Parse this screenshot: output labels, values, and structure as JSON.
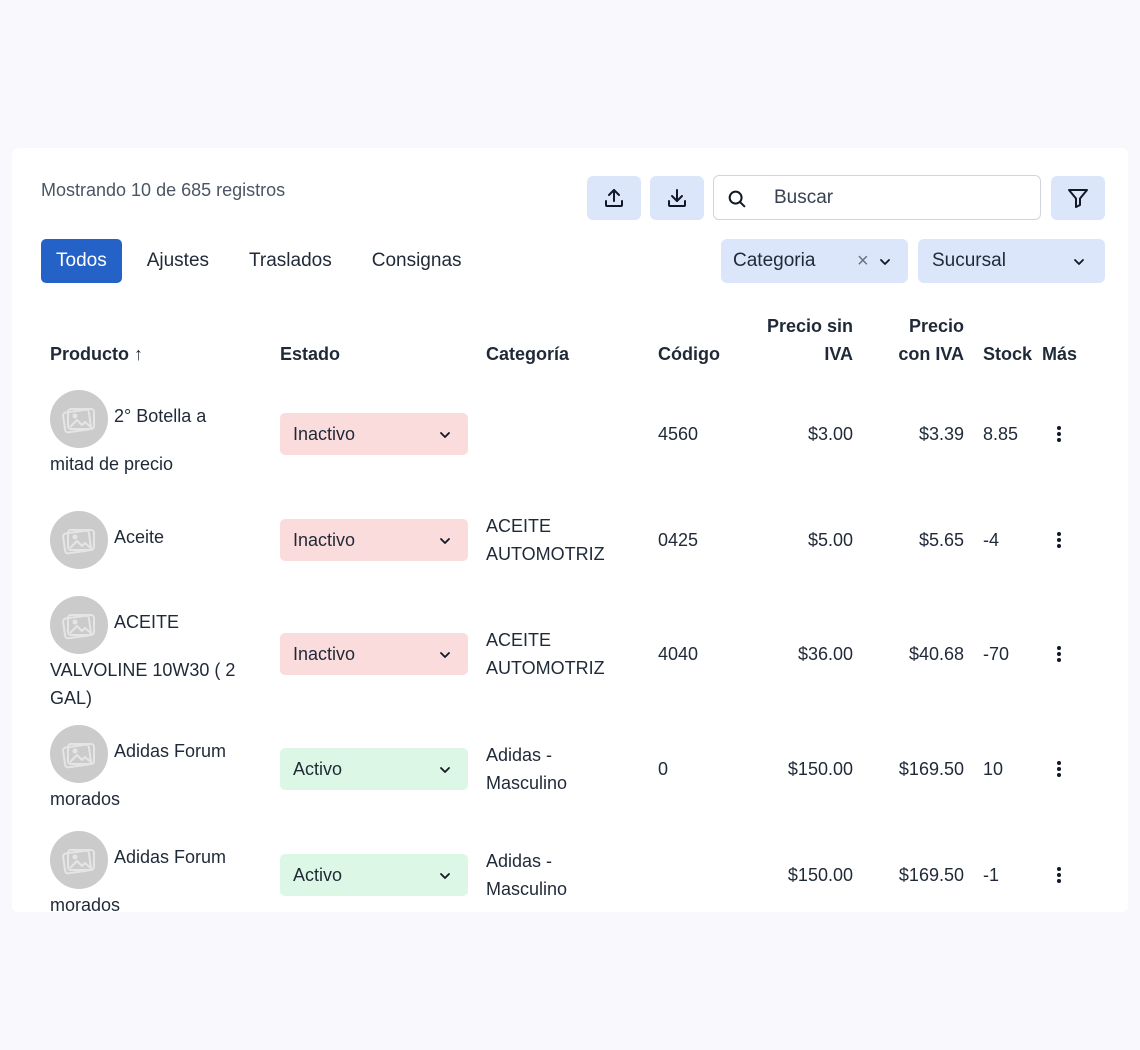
{
  "summary": "Mostrando 10 de 685 registros",
  "search": {
    "placeholder": "Buscar"
  },
  "tabs": [
    {
      "label": "Todos",
      "active": true
    },
    {
      "label": "Ajustes"
    },
    {
      "label": "Traslados"
    },
    {
      "label": "Consignas"
    }
  ],
  "filters": {
    "category": {
      "label": "Categoria"
    },
    "branch": {
      "label": "Sucursal"
    }
  },
  "icons": {
    "upload": "upload-icon",
    "download": "download-icon",
    "search": "search-icon",
    "filter": "filter-icon",
    "more": "more-vertical-icon"
  },
  "colors": {
    "accent": "#2462c7",
    "button_bg": "#dbe6fb",
    "inactive_bg": "#fbdcdc",
    "active_bg": "#dcf7e5"
  },
  "table": {
    "headers": {
      "product": "Producto ↑",
      "status": "Estado",
      "category": "Categoría",
      "code": "Código",
      "price_no_tax_1": "Precio sin",
      "price_no_tax_2": "IVA",
      "price_tax_1": "Precio",
      "price_tax_2": "con IVA",
      "stock": "Stock",
      "more": "Más"
    },
    "rows": [
      {
        "name_a": "2° Botella a",
        "name_b": "mitad de precio",
        "status": "Inactivo",
        "category": "",
        "code": "4560",
        "price": "$3.00",
        "price_tax": "$3.39",
        "stock": "8.85"
      },
      {
        "name_a": "Aceite",
        "name_b": "",
        "status": "Inactivo",
        "category": "ACEITE AUTOMOTRIZ",
        "code": "0425",
        "price": "$5.00",
        "price_tax": "$5.65",
        "stock": "-4"
      },
      {
        "name_a": "ACEITE",
        "name_b": "VALVOLINE 10W30 ( 2 GAL)",
        "status": "Inactivo",
        "category": "ACEITE AUTOMOTRIZ",
        "code": "4040",
        "price": "$36.00",
        "price_tax": "$40.68",
        "stock": "-70"
      },
      {
        "name_a": "Adidas Forum",
        "name_b": "morados",
        "status": "Activo",
        "category": "Adidas - Masculino",
        "code": "0",
        "price": "$150.00",
        "price_tax": "$169.50",
        "stock": "10"
      },
      {
        "name_a": "Adidas Forum",
        "name_b": "morados",
        "status": "Activo",
        "category": "Adidas - Masculino",
        "code": "",
        "price": "$150.00",
        "price_tax": "$169.50",
        "stock": "-1"
      }
    ]
  }
}
